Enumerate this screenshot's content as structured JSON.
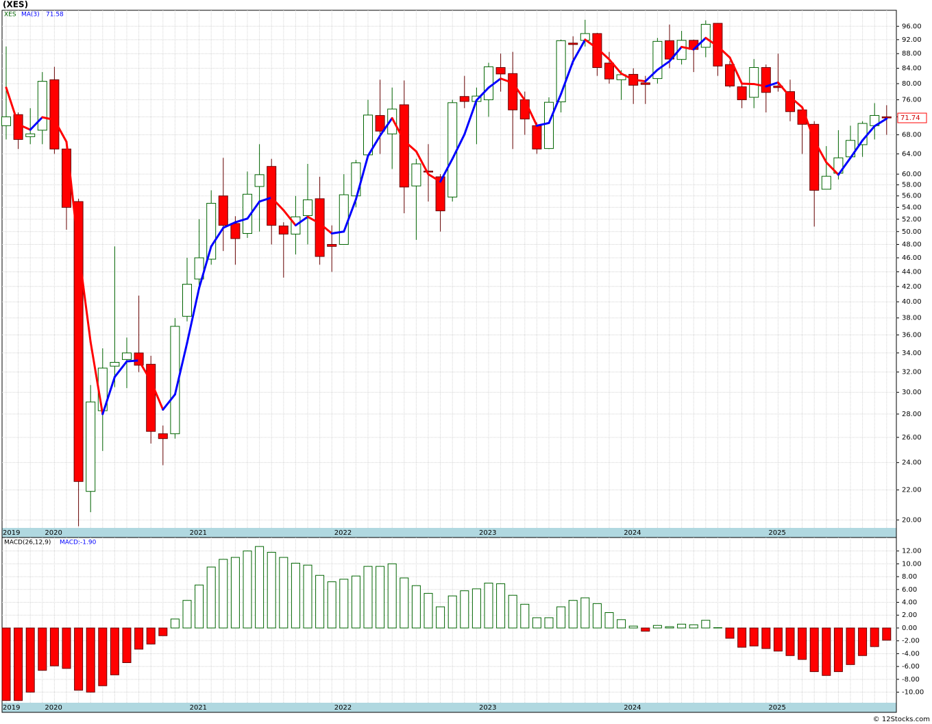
{
  "chart_data": [
    {
      "type": "candlestick",
      "title": "(XES)",
      "series_name": "XES",
      "ma_name": "MA(3)",
      "log_scale": true,
      "grid": true,
      "up_color": "#006400",
      "down_color": "#ff0000",
      "ma_up_color": "#0000ff",
      "ma_down_color": "#ff0000",
      "categories": [
        "2019",
        null,
        null,
        null,
        "2020",
        null,
        null,
        null,
        null,
        null,
        null,
        null,
        null,
        null,
        null,
        null,
        "2021",
        null,
        null,
        null,
        null,
        null,
        null,
        null,
        null,
        null,
        null,
        null,
        "2022",
        null,
        null,
        null,
        null,
        null,
        null,
        null,
        null,
        null,
        null,
        null,
        "2023",
        null,
        null,
        null,
        null,
        null,
        null,
        null,
        null,
        null,
        null,
        null,
        "2024",
        null,
        null,
        null,
        null,
        null,
        null,
        null,
        null,
        null,
        null,
        null,
        "2025",
        null,
        null,
        null,
        null,
        null,
        null,
        null,
        null,
        null
      ],
      "open": [
        70,
        72.5,
        67.6,
        69,
        81,
        65,
        55,
        21.9,
        28.3,
        32.6,
        33.3,
        34,
        32.8,
        26.3,
        26.3,
        38.2,
        43,
        45.8,
        56,
        51.3,
        49.7,
        57.7,
        61.5,
        50.9,
        49.6,
        52.6,
        55.5,
        48,
        48,
        56,
        63.8,
        72.3,
        68.2,
        74.8,
        57.8,
        60.6,
        59.5,
        55.8,
        76.8,
        75.6,
        76,
        84.2,
        82.6,
        76,
        70,
        65.1,
        75.5,
        91,
        91.8,
        93.8,
        85.4,
        81,
        82.4,
        80.2,
        81.3,
        91.7,
        86.4,
        91.8,
        89.8,
        96.9,
        85,
        79.2,
        76.6,
        84.2,
        79.4,
        78,
        73.6,
        70.3,
        57.2,
        60.2,
        63.4,
        65.9,
        70,
        72
      ],
      "high": [
        90,
        73,
        74,
        83,
        84.4,
        66,
        55.5,
        30.7,
        34.5,
        47.7,
        35.7,
        40.8,
        33.7,
        27,
        38,
        46,
        52,
        57,
        63.2,
        52.5,
        60.5,
        66,
        63,
        51.5,
        56,
        62,
        59.5,
        51,
        60,
        62.8,
        76,
        81,
        79,
        80.8,
        63,
        66,
        60,
        76,
        82,
        79,
        85.5,
        88,
        88.5,
        78,
        70.7,
        76.6,
        92,
        93,
        98,
        94,
        88.5,
        83.5,
        84,
        82,
        92.5,
        96.5,
        94.6,
        92,
        97.8,
        97,
        86,
        80,
        86.5,
        85,
        88,
        81,
        74,
        71,
        65.6,
        69,
        70,
        71,
        75.2,
        74.7
      ],
      "low": [
        67,
        65,
        66,
        66,
        64,
        50.3,
        19.6,
        20.5,
        24.9,
        30.5,
        30.4,
        32,
        25.5,
        23.8,
        25.9,
        37.6,
        42,
        45,
        47,
        45,
        49,
        50,
        48,
        43.2,
        46.5,
        48,
        45,
        44,
        48,
        54,
        63,
        64,
        61,
        53,
        48.7,
        55,
        50,
        55,
        74,
        66,
        72,
        78,
        65,
        68,
        64,
        65,
        73,
        85,
        90,
        82,
        80,
        76,
        75,
        75,
        80,
        84,
        85,
        83,
        87,
        82,
        79,
        74,
        74,
        73,
        78,
        71,
        64,
        50.8,
        57.2,
        59,
        63,
        63.4,
        67,
        68
      ],
      "close": [
        72,
        67,
        68.2,
        80.6,
        65,
        54,
        22.6,
        29.1,
        32.4,
        33,
        34,
        32.7,
        26.5,
        25.9,
        37,
        42.3,
        46,
        54.7,
        51,
        48.9,
        56.3,
        59.9,
        51,
        49.6,
        52.4,
        55.3,
        46.2,
        47.7,
        56.2,
        62.2,
        72.4,
        68.8,
        73.8,
        57.6,
        62,
        60.4,
        53.4,
        75.3,
        75.6,
        76.9,
        84.4,
        82.5,
        73.6,
        71.5,
        65,
        75.4,
        91.7,
        90.6,
        93.8,
        84.2,
        81.2,
        82.3,
        79.6,
        79.8,
        91.5,
        86.5,
        91.8,
        89.2,
        96.6,
        84.6,
        79.4,
        76,
        84.2,
        77.8,
        79,
        73.2,
        70.3,
        57,
        59.6,
        63.2,
        66.8,
        70.5,
        72.3,
        71.74
      ],
      "ma": [
        79,
        70.3,
        69.1,
        71.9,
        71.3,
        66.5,
        47.2,
        35.2,
        28,
        31.5,
        33.1,
        33.2,
        31.1,
        28.4,
        29.8,
        35.1,
        41.8,
        47.7,
        50.6,
        51.5,
        52.1,
        55,
        55.7,
        53.5,
        51,
        52.4,
        51.3,
        49.7,
        50,
        55.4,
        63.6,
        67.8,
        71.7,
        66.7,
        64.5,
        60,
        58.6,
        63,
        68.1,
        75.9,
        79,
        81.3,
        80.2,
        75.9,
        70,
        70.6,
        77.4,
        85.9,
        92,
        89.5,
        86.4,
        82.6,
        81,
        80.6,
        83.6,
        85.9,
        89.9,
        89.2,
        92.5,
        90.1,
        86.9,
        80,
        79.9,
        79.3,
        80.3,
        76.7,
        74.2,
        66.8,
        62.3,
        59.9,
        63.2,
        66.8,
        69.9,
        71.58
      ],
      "ylim": [
        19.5,
        101
      ],
      "yticks": [
        {
          "value": 20,
          "label": "20.00"
        },
        {
          "value": 22,
          "label": "22.00"
        },
        {
          "value": 24,
          "label": "24.00"
        },
        {
          "value": 26,
          "label": "26.00"
        },
        {
          "value": 28,
          "label": "28.00"
        },
        {
          "value": 30,
          "label": "30.00"
        },
        {
          "value": 32,
          "label": "32.00"
        },
        {
          "value": 34,
          "label": "34.00"
        },
        {
          "value": 36,
          "label": "36.00"
        },
        {
          "value": 38,
          "label": "38.00"
        },
        {
          "value": 40,
          "label": "40.00"
        },
        {
          "value": 42,
          "label": "42.00"
        },
        {
          "value": 44,
          "label": "44.00"
        },
        {
          "value": 46,
          "label": "46.00"
        },
        {
          "value": 48,
          "label": "48.00"
        },
        {
          "value": 50,
          "label": "50.00"
        },
        {
          "value": 52,
          "label": "52.00"
        },
        {
          "value": 54,
          "label": "54.00"
        },
        {
          "value": 56,
          "label": "56.00"
        },
        {
          "value": 58,
          "label": "58.00"
        },
        {
          "value": 60,
          "label": "60.00"
        },
        {
          "value": 64,
          "label": "64.00"
        },
        {
          "value": 68,
          "label": "68.00"
        },
        {
          "value": 72,
          "label": "72.00"
        },
        {
          "value": 76,
          "label": "76.00"
        },
        {
          "value": 80,
          "label": "80.00"
        },
        {
          "value": 84,
          "label": "84.00"
        },
        {
          "value": 88,
          "label": "88.00"
        },
        {
          "value": 92,
          "label": "92.00"
        },
        {
          "value": 96,
          "label": "96.00"
        }
      ]
    },
    {
      "type": "bar",
      "series_name": "MACD(26,12,9)",
      "value_label": "MACD:-1.90",
      "pos_color": "#006400",
      "neg_color": "#ff0000",
      "grid": true,
      "categories": [
        "2019",
        null,
        null,
        null,
        "2020",
        null,
        null,
        null,
        null,
        null,
        null,
        null,
        null,
        null,
        null,
        null,
        "2021",
        null,
        null,
        null,
        null,
        null,
        null,
        null,
        null,
        null,
        null,
        null,
        "2022",
        null,
        null,
        null,
        null,
        null,
        null,
        null,
        null,
        null,
        null,
        null,
        "2023",
        null,
        null,
        null,
        null,
        null,
        null,
        null,
        null,
        null,
        null,
        null,
        "2024",
        null,
        null,
        null,
        null,
        null,
        null,
        null,
        null,
        null,
        null,
        null,
        "2025",
        null,
        null,
        null,
        null,
        null,
        null,
        null,
        null,
        null
      ],
      "values": [
        -11.3,
        -11.3,
        -10,
        -6.6,
        -5.9,
        -6.3,
        -9.7,
        -10,
        -9,
        -7.3,
        -5.4,
        -3.3,
        -2.5,
        -1.2,
        1.4,
        4.3,
        6.7,
        9.5,
        10.7,
        11,
        12,
        12.7,
        11.8,
        11,
        10.1,
        9.8,
        8.2,
        7.2,
        7.6,
        8.1,
        9.6,
        9.6,
        10,
        7.8,
        6.6,
        5.4,
        3.3,
        5,
        5.8,
        6.1,
        7,
        6.9,
        5.1,
        3.7,
        1.6,
        1.6,
        3.3,
        4.3,
        4.7,
        3.8,
        2.4,
        1.3,
        0.3,
        -0.5,
        0.4,
        0.2,
        0.6,
        0.5,
        1.2,
        0.05,
        -1.6,
        -3,
        -2.8,
        -3.2,
        -3.6,
        -4.3,
        -4.9,
        -6.8,
        -7.4,
        -6.8,
        -5.7,
        -4.3,
        -2.9,
        -1.9
      ],
      "ylim": [
        -11.65,
        14.1
      ],
      "yticks": [
        {
          "value": 12,
          "label": "12.00"
        },
        {
          "value": 10,
          "label": "10.00"
        },
        {
          "value": 8,
          "label": "8.00"
        },
        {
          "value": 6,
          "label": "6.00"
        },
        {
          "value": 4,
          "label": "4.00"
        },
        {
          "value": 2,
          "label": "2.00"
        },
        {
          "value": 0,
          "label": "0.00"
        },
        {
          "value": -2,
          "label": "-2.00"
        },
        {
          "value": -4,
          "label": "-4.00"
        },
        {
          "value": -6,
          "label": "-6.00"
        },
        {
          "value": -8,
          "label": "-8.00"
        },
        {
          "value": -10,
          "label": "-10.00"
        }
      ]
    }
  ],
  "watermark": "© 12Stocks.com"
}
